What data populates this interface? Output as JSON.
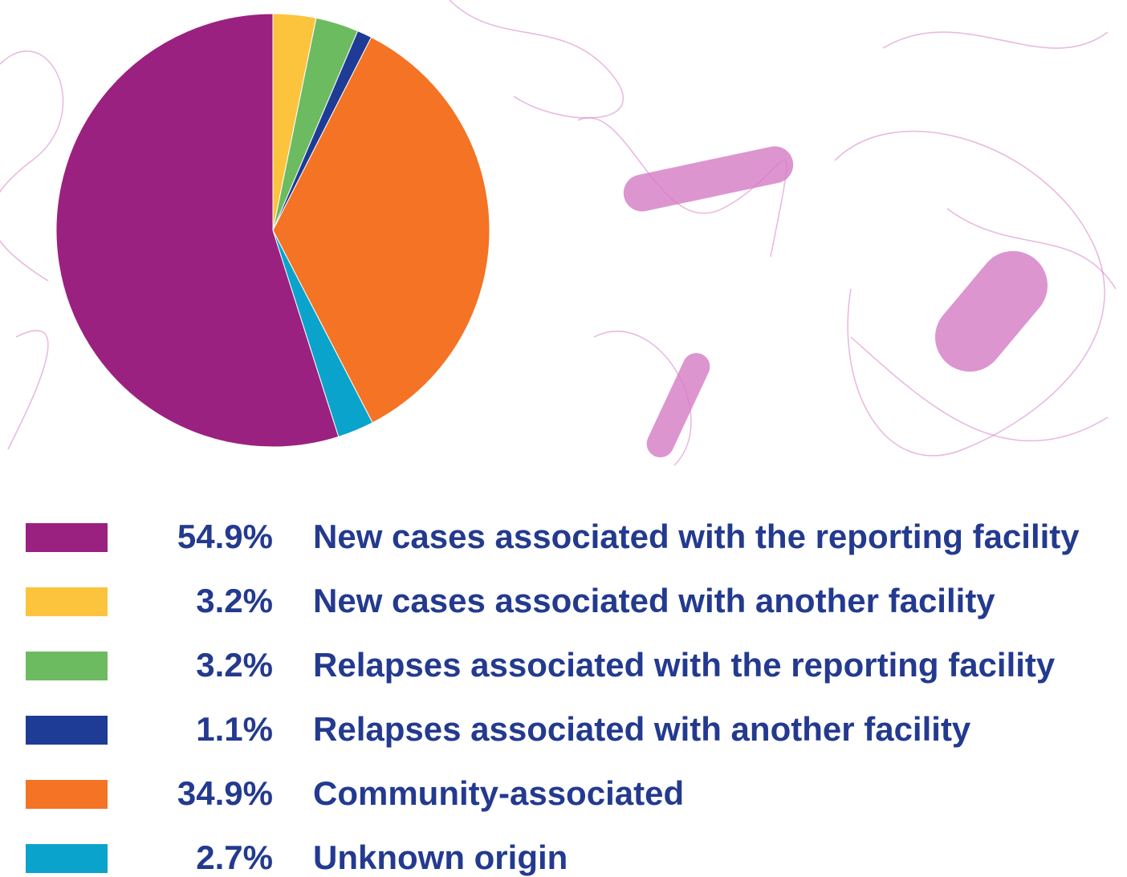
{
  "chart_data": {
    "type": "pie",
    "categories": [
      "New cases associated with the reporting facility",
      "New cases associated with another facility",
      "Relapses associated with the reporting facility",
      "Relapses associated with another facility",
      "Community-associated",
      "Unknown origin"
    ],
    "values": [
      54.9,
      3.2,
      3.2,
      1.1,
      34.9,
      2.7
    ],
    "value_labels": [
      "54.9%",
      "3.2%",
      "3.2%",
      "1.1%",
      "34.9%",
      "2.7%"
    ],
    "colors": [
      "#9b2180",
      "#fcc33c",
      "#6dbb60",
      "#1e3c96",
      "#f47324",
      "#0aa3cb"
    ]
  }
}
